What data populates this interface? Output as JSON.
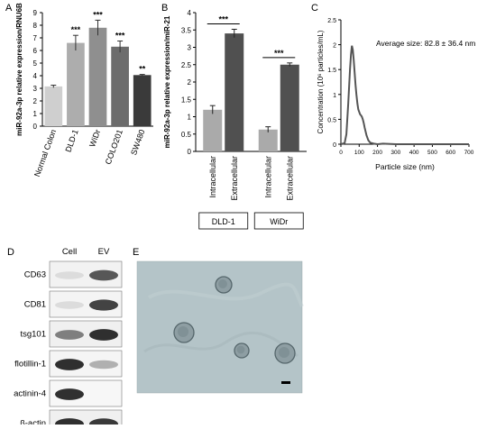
{
  "panels": {
    "A": {
      "label": "A",
      "chart_data": {
        "type": "bar",
        "ylabel": "miR-92a-3p relative expression/RNU6B",
        "ylim": [
          0,
          9
        ],
        "yticks": [
          0,
          1,
          2,
          3,
          4,
          5,
          6,
          7,
          8,
          9
        ],
        "categories": [
          "Normal Colon",
          "DLD-1",
          "WiDr",
          "COLO201",
          "SW480"
        ],
        "values": [
          3.15,
          6.6,
          7.8,
          6.3,
          4.05
        ],
        "errors": [
          0.1,
          0.6,
          0.6,
          0.45,
          0.05
        ],
        "colors": [
          "#cfcfcf",
          "#adadad",
          "#8f8f8f",
          "#6c6c6c",
          "#3a3a3a"
        ],
        "annotations": [
          "",
          "***",
          "***",
          "***",
          "**"
        ]
      }
    },
    "B": {
      "label": "B",
      "chart_data": {
        "type": "bar",
        "ylabel": "miR-92a-3p relative expression/miR-21",
        "ylim": [
          0,
          4
        ],
        "yticks": [
          0,
          0.5,
          1,
          1.5,
          2,
          2.5,
          3,
          3.5,
          4
        ],
        "groups": [
          {
            "name": "DLD-1",
            "categories": [
              "Intracellular",
              "Extracellular"
            ],
            "values": [
              1.2,
              3.4
            ],
            "errors": [
              0.12,
              0.12
            ],
            "sig": "***"
          },
          {
            "name": "WiDr",
            "categories": [
              "Intracellular",
              "Extracellular"
            ],
            "values": [
              0.63,
              2.5
            ],
            "errors": [
              0.08,
              0.05
            ],
            "sig": "***"
          }
        ],
        "colors": [
          "#aaaaaa",
          "#505050"
        ]
      }
    },
    "C": {
      "label": "C",
      "chart_data": {
        "type": "line",
        "ylabel": "Concentration (10⁶ particles/mL)",
        "xlabel": "Particle size (nm)",
        "xlim": [
          0,
          700
        ],
        "ylim": [
          0,
          2.5
        ],
        "xticks": [
          0,
          100,
          200,
          300,
          400,
          500,
          600,
          700
        ],
        "yticks": [
          0,
          0.5,
          1,
          1.5,
          2,
          2.5
        ],
        "annotation": "Average size: 82.8 ± 36.4 nm",
        "series": [
          {
            "color": "#555555",
            "x": [
              0,
              20,
              30,
              40,
              50,
              55,
              60,
              65,
              70,
              75,
              80,
              85,
              90,
              95,
              100,
              105,
              110,
              115,
              120,
              125,
              130,
              140,
              150,
              160,
              180,
              200,
              230,
              300,
              400,
              600,
              700
            ],
            "y": [
              0,
              0.02,
              0.2,
              0.8,
              1.5,
              1.8,
              1.98,
              1.9,
              1.7,
              1.45,
              1.2,
              1.0,
              0.82,
              0.7,
              0.65,
              0.6,
              0.58,
              0.55,
              0.5,
              0.42,
              0.33,
              0.18,
              0.08,
              0.03,
              0.01,
              0.0,
              0.01,
              0.0,
              0.0,
              0.0,
              0.0
            ]
          }
        ]
      }
    },
    "D": {
      "label": "D",
      "columns": [
        "Cell",
        "EV"
      ],
      "rows": [
        {
          "label": "CD63",
          "bands": [
            0.08,
            0.75
          ],
          "bg": "#f2f2f2"
        },
        {
          "label": "CD81",
          "bands": [
            0.08,
            0.85
          ],
          "bg": "#f4f4f4"
        },
        {
          "label": "tsg101",
          "bands": [
            0.55,
            0.95
          ],
          "bg": "#f0f0f0"
        },
        {
          "label": "flotillin-1",
          "bands": [
            0.95,
            0.3
          ],
          "bg": "#f5f5f5"
        },
        {
          "label": "actinin-4",
          "bands": [
            0.95,
            0.0
          ],
          "bg": "#f7f7f7"
        },
        {
          "label": "β-actin",
          "bands": [
            0.95,
            0.9
          ],
          "bg": "#f0f0f0"
        }
      ]
    },
    "E": {
      "label": "E",
      "background": "#b4c4c8"
    }
  }
}
